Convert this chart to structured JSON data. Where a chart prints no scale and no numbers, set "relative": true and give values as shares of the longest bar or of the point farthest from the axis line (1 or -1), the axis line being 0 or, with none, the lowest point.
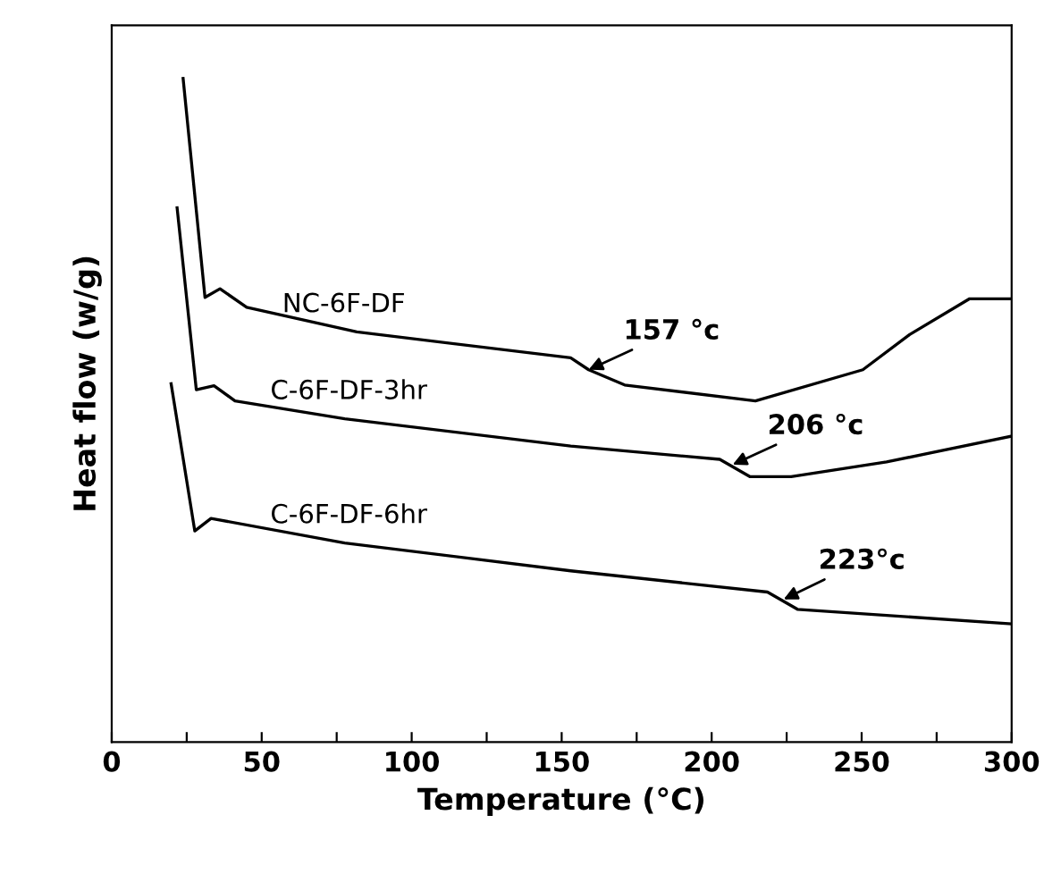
{
  "chart_data": {
    "type": "line",
    "xlabel": "Temperature (°C)",
    "ylabel": "Heat flow (w/g)",
    "relative": true,
    "xlim": [
      0,
      300
    ],
    "xticks": [
      0,
      {
        "value": 25,
        "label": null
      },
      50,
      {
        "value": 75,
        "label": null
      },
      100,
      {
        "value": 125,
        "label": null
      },
      150,
      {
        "value": 175,
        "label": null
      },
      200,
      {
        "value": 225,
        "label": null
      },
      250,
      {
        "value": 275,
        "label": null
      },
      300
    ],
    "series": [
      {
        "name": "NC-6F-DF",
        "color": "#000000",
        "x": [
          23.8,
          31.1,
          36.1,
          45,
          81.7,
          153,
          159,
          171,
          214.6,
          250.4,
          266,
          286,
          300
        ],
        "values": [
          1.0,
          0.67,
          0.683,
          0.655,
          0.618,
          0.579,
          0.561,
          0.538,
          0.514,
          0.561,
          0.614,
          0.668,
          0.668
        ]
      },
      {
        "name": "C-6F-DF-3hr",
        "color": "#000000",
        "x": [
          21.8,
          28.2,
          34.1,
          41.1,
          77.7,
          153,
          202.7,
          212.7,
          226.5,
          258.3,
          300
        ],
        "values": [
          0.805,
          0.531,
          0.537,
          0.514,
          0.487,
          0.446,
          0.426,
          0.4,
          0.4,
          0.422,
          0.461
        ]
      },
      {
        "name": "C-6F-DF-6hr",
        "color": "#000000",
        "x": [
          19.8,
          27.7,
          33.1,
          77.7,
          153,
          218.6,
          228.6,
          300
        ],
        "values": [
          0.54,
          0.318,
          0.337,
          0.3,
          0.258,
          0.226,
          0.2,
          0.178
        ]
      }
    ],
    "annotations": [
      {
        "text": "157 °c",
        "x": 159,
        "y": 0.561
      },
      {
        "text": "206 °c",
        "x": 207,
        "y": 0.418
      },
      {
        "text": "223°c",
        "x": 224,
        "y": 0.215
      }
    ],
    "legend": false,
    "grid": false
  }
}
